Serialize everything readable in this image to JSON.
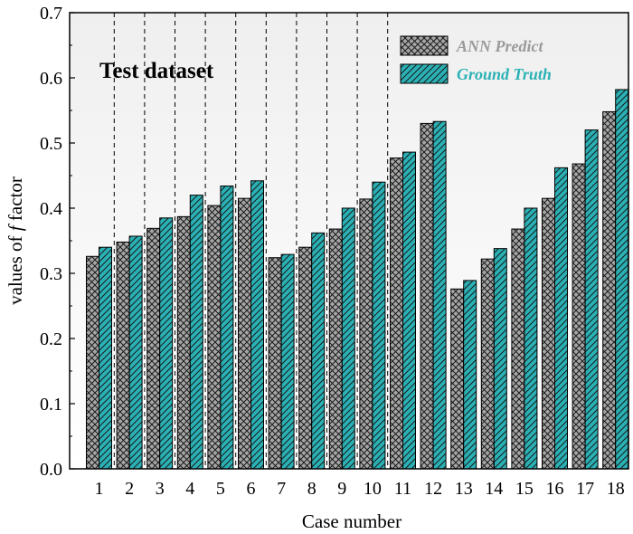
{
  "chart_data": {
    "type": "bar",
    "title": "",
    "annotation": "Test dataset",
    "xlabel": "Case number",
    "ylabel_prefix": "values of ",
    "ylabel_symbol": "f",
    "ylabel_suffix": " factor",
    "ylim": [
      0,
      0.7
    ],
    "yticks": [
      "0.0",
      "0.1",
      "0.2",
      "0.3",
      "0.4",
      "0.5",
      "0.6",
      "0.7"
    ],
    "categories": [
      "1",
      "2",
      "3",
      "4",
      "5",
      "6",
      "7",
      "8",
      "9",
      "10",
      "11",
      "12",
      "13",
      "14",
      "15",
      "16",
      "17",
      "18"
    ],
    "series": [
      {
        "name": "ANN Predict",
        "color": "#a6a6a6",
        "text_color": "#9a9a9a",
        "values": [
          0.326,
          0.348,
          0.369,
          0.387,
          0.404,
          0.415,
          0.324,
          0.34,
          0.368,
          0.414,
          0.477,
          0.53,
          0.276,
          0.322,
          0.368,
          0.415,
          0.468,
          0.548
        ]
      },
      {
        "name": "Ground Truth",
        "color": "#2ab1b5",
        "text_color": "#2ab1b5",
        "values": [
          0.34,
          0.357,
          0.385,
          0.42,
          0.434,
          0.442,
          0.329,
          0.362,
          0.4,
          0.44,
          0.486,
          0.533,
          0.289,
          0.338,
          0.4,
          0.462,
          0.52,
          0.582
        ]
      }
    ],
    "grid": "vertical dashed separators after cases 1 through 10",
    "legend_position": "top-right"
  }
}
